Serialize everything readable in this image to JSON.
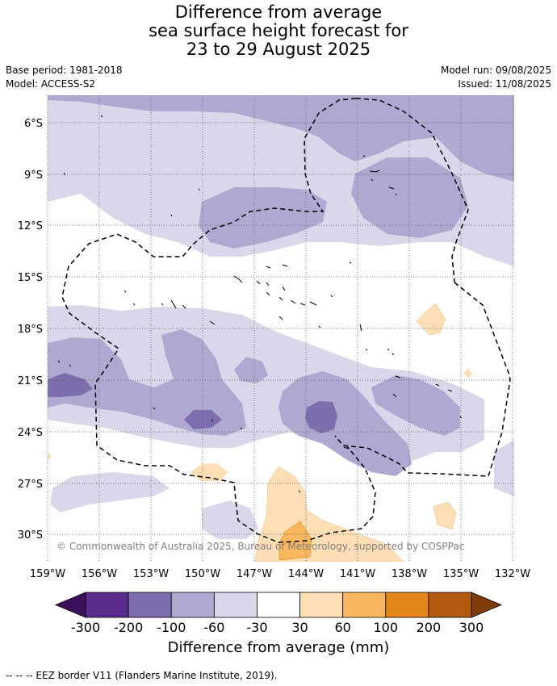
{
  "title": {
    "line1": "Difference from average",
    "line2": "sea surface height forecast for",
    "line3": "23 to 29 August 2025"
  },
  "meta": {
    "base_period": "Base period: 1981-2018",
    "model": "Model: ACCESS-S2",
    "model_run": "Model run: 09/08/2025",
    "issued": "Issued: 11/08/2025"
  },
  "map": {
    "lat_labels": [
      "6°S",
      "9°S",
      "12°S",
      "15°S",
      "18°S",
      "21°S",
      "24°S",
      "27°S",
      "30°S"
    ],
    "lon_labels": [
      "159°W",
      "156°W",
      "153°W",
      "150°W",
      "147°W",
      "144°W",
      "141°W",
      "138°W",
      "135°W",
      "132°W"
    ],
    "copyright": "© Commonwealth of Australia 2025, Bureau of Meteorology, supported by COSPPac"
  },
  "colorbar": {
    "labels": [
      "-300",
      "-200",
      "-100",
      "-60",
      "-30",
      "30",
      "60",
      "100",
      "200",
      "300"
    ],
    "colors": [
      "#3b0f5a",
      "#5a2a8c",
      "#7e6eae",
      "#afa9d2",
      "#d8d8ea",
      "#ffffff",
      "#fedfb5",
      "#fbb75e",
      "#e4861c",
      "#b15a10",
      "#7f3b08"
    ],
    "title": "Difference from average (mm)"
  },
  "footer": "--  --  -- EEZ border V11 (Flanders Marine Institute, 2019)."
}
